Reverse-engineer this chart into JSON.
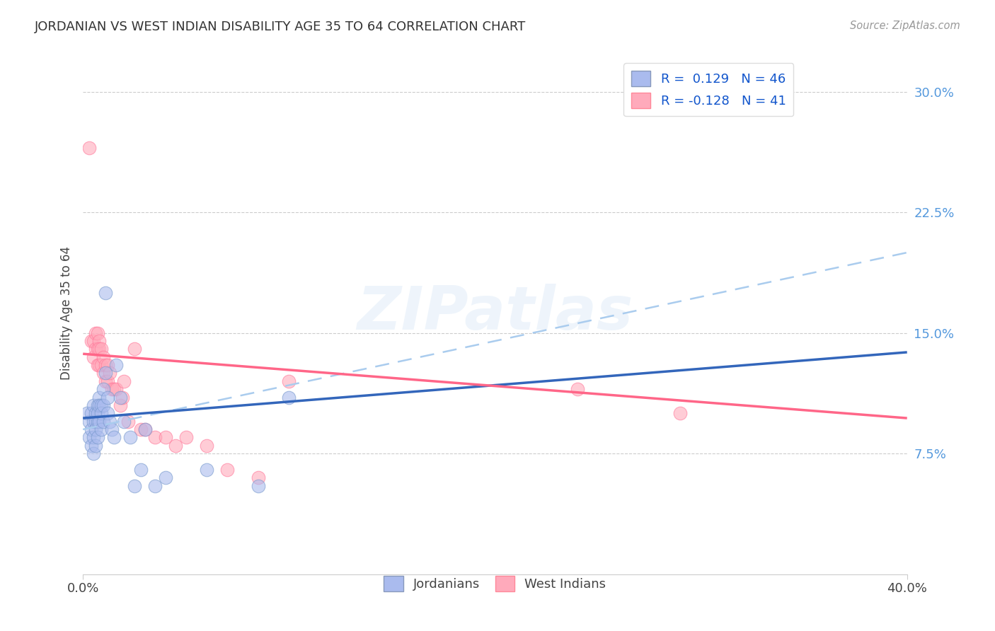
{
  "title": "JORDANIAN VS WEST INDIAN DISABILITY AGE 35 TO 64 CORRELATION CHART",
  "source": "Source: ZipAtlas.com",
  "ylabel": "Disability Age 35 to 64",
  "yticks_right": [
    "7.5%",
    "15.0%",
    "22.5%",
    "30.0%"
  ],
  "yticks_values": [
    0.075,
    0.15,
    0.225,
    0.3
  ],
  "xlim": [
    0.0,
    0.4
  ],
  "ylim": [
    0.0,
    0.325
  ],
  "blue_color": "#AABBEE",
  "pink_color": "#FFAABB",
  "blue_edge_color": "#7799CC",
  "pink_edge_color": "#FF7799",
  "blue_line_color": "#3366BB",
  "pink_line_color": "#FF6688",
  "dashed_line_color": "#AACCEE",
  "jordanians_x": [
    0.002,
    0.003,
    0.003,
    0.004,
    0.004,
    0.004,
    0.005,
    0.005,
    0.005,
    0.005,
    0.006,
    0.006,
    0.006,
    0.006,
    0.007,
    0.007,
    0.007,
    0.007,
    0.008,
    0.008,
    0.008,
    0.009,
    0.009,
    0.009,
    0.01,
    0.01,
    0.01,
    0.011,
    0.011,
    0.012,
    0.012,
    0.013,
    0.014,
    0.015,
    0.016,
    0.018,
    0.02,
    0.023,
    0.025,
    0.028,
    0.03,
    0.035,
    0.04,
    0.06,
    0.085,
    0.1
  ],
  "jordanians_y": [
    0.1,
    0.095,
    0.085,
    0.1,
    0.09,
    0.08,
    0.105,
    0.095,
    0.085,
    0.075,
    0.1,
    0.095,
    0.09,
    0.08,
    0.105,
    0.1,
    0.095,
    0.085,
    0.11,
    0.105,
    0.095,
    0.105,
    0.1,
    0.09,
    0.115,
    0.105,
    0.095,
    0.175,
    0.125,
    0.11,
    0.1,
    0.095,
    0.09,
    0.085,
    0.13,
    0.11,
    0.095,
    0.085,
    0.055,
    0.065,
    0.09,
    0.055,
    0.06,
    0.065,
    0.055,
    0.11
  ],
  "westindians_x": [
    0.003,
    0.004,
    0.005,
    0.005,
    0.006,
    0.006,
    0.007,
    0.007,
    0.007,
    0.008,
    0.008,
    0.008,
    0.009,
    0.009,
    0.01,
    0.01,
    0.011,
    0.011,
    0.012,
    0.012,
    0.013,
    0.014,
    0.015,
    0.016,
    0.018,
    0.019,
    0.02,
    0.022,
    0.025,
    0.028,
    0.03,
    0.035,
    0.04,
    0.045,
    0.05,
    0.06,
    0.07,
    0.085,
    0.1,
    0.24,
    0.29
  ],
  "westindians_y": [
    0.265,
    0.145,
    0.145,
    0.135,
    0.15,
    0.14,
    0.15,
    0.14,
    0.13,
    0.145,
    0.14,
    0.13,
    0.14,
    0.13,
    0.135,
    0.125,
    0.13,
    0.12,
    0.13,
    0.12,
    0.125,
    0.115,
    0.115,
    0.115,
    0.105,
    0.11,
    0.12,
    0.095,
    0.14,
    0.09,
    0.09,
    0.085,
    0.085,
    0.08,
    0.085,
    0.08,
    0.065,
    0.06,
    0.12,
    0.115,
    0.1
  ],
  "blue_trend_y_start": 0.097,
  "blue_trend_y_end": 0.138,
  "pink_trend_y_start": 0.137,
  "pink_trend_y_end": 0.097,
  "dashed_trend_y_start": 0.09,
  "dashed_trend_y_end": 0.2,
  "watermark_text": "ZIPatlas",
  "background_color": "#FFFFFF",
  "grid_color": "#CCCCCC",
  "legend1_text": "R =  0.129   N = 46",
  "legend2_text": "R = -0.128   N = 41",
  "legend1_label": "Jordanians",
  "legend2_label": "West Indians"
}
